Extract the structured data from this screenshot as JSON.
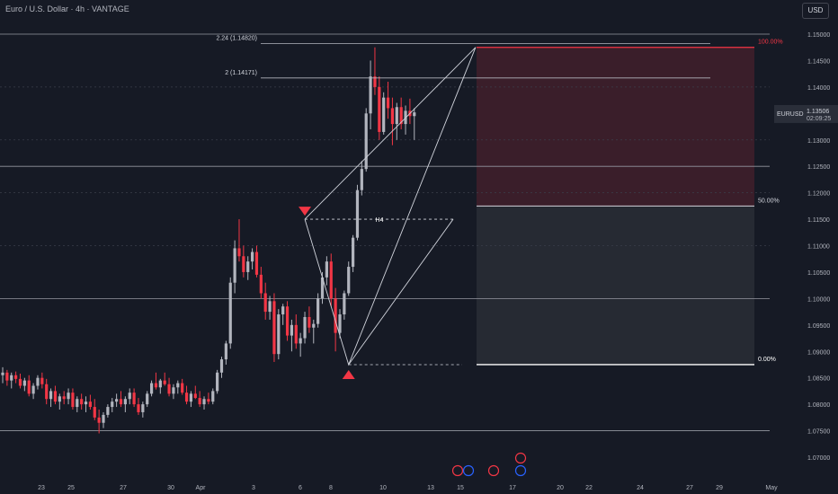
{
  "header": {
    "title": "Euro / U.S. Dollar · 4h · VANTAGE",
    "currency_button": "USD"
  },
  "price_label": {
    "symbol": "EURUSD",
    "price": "1.13506",
    "countdown": "02:09:25"
  },
  "colors": {
    "background": "#161a25",
    "up": "#b2b5be",
    "down": "#f23645",
    "line": "#d1d4dc",
    "grid": "#b2b5be",
    "loss_zone": "#3a1e2a",
    "gray_zone": "#262a33"
  },
  "chart_data": {
    "type": "candlestick",
    "y_axis": {
      "ticks": [
        "1.15000",
        "1.14500",
        "1.14000",
        "1.13500",
        "1.13000",
        "1.12500",
        "1.12000",
        "1.11500",
        "1.11000",
        "1.10500",
        "1.10000",
        "1.09500",
        "1.09000",
        "1.08500",
        "1.08000",
        "1.07500",
        "1.07000"
      ],
      "range": [
        1.067,
        1.1525
      ]
    },
    "x_axis": {
      "ticks": [
        "23",
        "25",
        "27",
        "30",
        "Apr",
        "3",
        "6",
        "8",
        "10",
        "13",
        "15",
        "17",
        "20",
        "22",
        "24",
        "27",
        "29",
        "May"
      ]
    },
    "horizontal_levels": [
      1.15,
      1.125,
      1.1,
      1.075
    ],
    "dotted_levels": [
      1.14,
      1.13,
      1.12,
      1.11
    ],
    "fib_extensions": [
      {
        "label": "2.24 (1.14820)",
        "value": 1.1482
      },
      {
        "label": "2 (1.14171)",
        "value": 1.14171
      }
    ],
    "pattern_points": [
      {
        "x_index": 69,
        "y": 1.115
      },
      {
        "x_index": 79,
        "y": 1.0875
      },
      {
        "x_index": 108,
        "y": 1.1475
      }
    ],
    "pattern_label": "H4",
    "position_box": {
      "top": 1.1475,
      "mid": 1.1175,
      "bottom": 1.0875,
      "labels": {
        "top": "100.00%",
        "mid": "50.00%",
        "bottom": "0.00%"
      }
    },
    "candles": [
      [
        1.0855,
        1.087,
        1.084,
        1.086
      ],
      [
        1.086,
        1.0865,
        1.0835,
        1.0845
      ],
      [
        1.0845,
        1.086,
        1.083,
        1.0855
      ],
      [
        1.0855,
        1.0862,
        1.084,
        1.0848
      ],
      [
        1.0848,
        1.0858,
        1.083,
        1.0835
      ],
      [
        1.0835,
        1.085,
        1.0825,
        1.0845
      ],
      [
        1.0845,
        1.0855,
        1.0815,
        1.082
      ],
      [
        1.082,
        1.084,
        1.081,
        1.0835
      ],
      [
        1.0835,
        1.0855,
        1.0828,
        1.085
      ],
      [
        1.085,
        1.086,
        1.083,
        1.0838
      ],
      [
        1.0838,
        1.0848,
        1.08,
        1.081
      ],
      [
        1.081,
        1.083,
        1.0795,
        1.0825
      ],
      [
        1.0825,
        1.0835,
        1.08,
        1.0805
      ],
      [
        1.0805,
        1.082,
        1.079,
        1.0815
      ],
      [
        1.0815,
        1.0825,
        1.08,
        1.081
      ],
      [
        1.081,
        1.083,
        1.08,
        1.0822
      ],
      [
        1.0822,
        1.083,
        1.079,
        1.0795
      ],
      [
        1.0795,
        1.0815,
        1.0785,
        1.081
      ],
      [
        1.081,
        1.082,
        1.079,
        1.08
      ],
      [
        1.08,
        1.0815,
        1.0785,
        1.0805
      ],
      [
        1.0805,
        1.0818,
        1.079,
        1.0795
      ],
      [
        1.0795,
        1.081,
        1.077,
        1.0775
      ],
      [
        1.0775,
        1.079,
        1.0745,
        1.0765
      ],
      [
        1.0765,
        1.0785,
        1.0755,
        1.078
      ],
      [
        1.078,
        1.08,
        1.0775,
        1.0795
      ],
      [
        1.0795,
        1.0812,
        1.0785,
        1.0805
      ],
      [
        1.0805,
        1.082,
        1.0795,
        1.081
      ],
      [
        1.081,
        1.0825,
        1.0795,
        1.08
      ],
      [
        1.08,
        1.0815,
        1.0785,
        1.081
      ],
      [
        1.081,
        1.083,
        1.08,
        1.0822
      ],
      [
        1.0822,
        1.083,
        1.0795,
        1.08
      ],
      [
        1.08,
        1.0812,
        1.078,
        1.0785
      ],
      [
        1.0785,
        1.0805,
        1.0775,
        1.08
      ],
      [
        1.08,
        1.0825,
        1.0795,
        1.082
      ],
      [
        1.082,
        1.0845,
        1.0815,
        1.084
      ],
      [
        1.084,
        1.086,
        1.0828,
        1.0832
      ],
      [
        1.0832,
        1.0848,
        1.082,
        1.0845
      ],
      [
        1.0845,
        1.086,
        1.0835,
        1.0838
      ],
      [
        1.0838,
        1.085,
        1.0815,
        1.082
      ],
      [
        1.082,
        1.0838,
        1.081,
        1.0832
      ],
      [
        1.0832,
        1.0845,
        1.082,
        1.084
      ],
      [
        1.084,
        1.0848,
        1.0818,
        1.0822
      ],
      [
        1.0822,
        1.0835,
        1.08,
        1.0805
      ],
      [
        1.0805,
        1.0825,
        1.0795,
        1.082
      ],
      [
        1.082,
        1.0835,
        1.081,
        1.0812
      ],
      [
        1.0812,
        1.0825,
        1.0795,
        1.08
      ],
      [
        1.08,
        1.0815,
        1.079,
        1.081
      ],
      [
        1.081,
        1.0822,
        1.08,
        1.0805
      ],
      [
        1.0805,
        1.083,
        1.08,
        1.0825
      ],
      [
        1.0825,
        1.0865,
        1.082,
        1.086
      ],
      [
        1.086,
        1.089,
        1.085,
        1.0885
      ],
      [
        1.0885,
        1.092,
        1.0875,
        1.0915
      ],
      [
        1.0915,
        1.104,
        1.0905,
        1.103
      ],
      [
        1.103,
        1.111,
        1.101,
        1.1095
      ],
      [
        1.1095,
        1.115,
        1.107,
        1.108
      ],
      [
        1.108,
        1.11,
        1.104,
        1.105
      ],
      [
        1.105,
        1.108,
        1.1035,
        1.107
      ],
      [
        1.107,
        1.1095,
        1.1055,
        1.1088
      ],
      [
        1.1088,
        1.11,
        1.104,
        1.1045
      ],
      [
        1.1045,
        1.106,
        1.1,
        1.101
      ],
      [
        1.101,
        1.103,
        1.096,
        1.0975
      ],
      [
        1.0975,
        1.1005,
        1.096,
        1.0995
      ],
      [
        1.0995,
        1.101,
        1.088,
        1.0895
      ],
      [
        1.0895,
        1.098,
        1.0885,
        1.097
      ],
      [
        1.097,
        1.099,
        1.095,
        1.0985
      ],
      [
        1.0985,
        1.0995,
        1.092,
        1.093
      ],
      [
        1.093,
        1.096,
        1.09,
        1.095
      ],
      [
        1.095,
        1.097,
        1.0905,
        1.0915
      ],
      [
        1.0915,
        1.0935,
        1.089,
        1.0925
      ],
      [
        1.0925,
        1.0975,
        1.0915,
        1.0965
      ],
      [
        1.0965,
        1.0985,
        1.0935,
        1.0945
      ],
      [
        1.0945,
        1.096,
        1.0915,
        1.0952
      ],
      [
        1.0952,
        1.101,
        1.0945,
        1.1
      ],
      [
        1.1,
        1.105,
        1.099,
        1.104
      ],
      [
        1.104,
        1.108,
        1.1025,
        1.107
      ],
      [
        1.107,
        1.1085,
        1.0985,
        1.1
      ],
      [
        1.1,
        1.102,
        1.09,
        1.0935
      ],
      [
        1.0935,
        1.098,
        1.0925,
        1.097
      ],
      [
        1.097,
        1.1015,
        1.096,
        1.101
      ],
      [
        1.101,
        1.107,
        1.1005,
        1.106
      ],
      [
        1.106,
        1.112,
        1.105,
        1.1115
      ],
      [
        1.1115,
        1.1215,
        1.111,
        1.1205
      ],
      [
        1.1205,
        1.126,
        1.1195,
        1.1245
      ],
      [
        1.1245,
        1.136,
        1.124,
        1.135
      ],
      [
        1.135,
        1.145,
        1.132,
        1.142
      ],
      [
        1.142,
        1.1475,
        1.1385,
        1.14
      ],
      [
        1.14,
        1.142,
        1.13,
        1.1315
      ],
      [
        1.1315,
        1.139,
        1.131,
        1.138
      ],
      [
        1.138,
        1.141,
        1.134,
        1.136
      ],
      [
        1.136,
        1.138,
        1.129,
        1.133
      ],
      [
        1.133,
        1.137,
        1.13,
        1.1362
      ],
      [
        1.1362,
        1.138,
        1.132,
        1.133
      ],
      [
        1.133,
        1.1365,
        1.131,
        1.1355
      ],
      [
        1.1355,
        1.1378,
        1.133,
        1.1345
      ],
      [
        1.1345,
        1.136,
        1.13,
        1.1352
      ]
    ]
  }
}
